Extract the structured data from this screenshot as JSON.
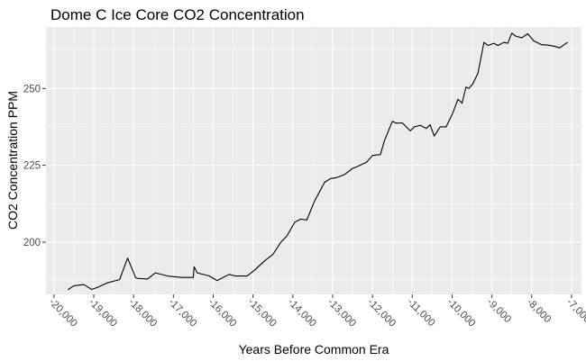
{
  "chart_data": {
    "type": "line",
    "title": "Dome C Ice Core CO2 Concentration",
    "xlabel": "Years Before Common Era",
    "ylabel": "CO2 Concentration PPM",
    "xlim": [
      -20200,
      -6750
    ],
    "ylim": [
      183,
      270
    ],
    "grid": true,
    "colors": {
      "panel": "#ebebeb",
      "grid_major": "#ffffff",
      "line": "#000000",
      "tick_text": "#4d4d4d"
    },
    "x_ticks": [
      {
        "value": -20000,
        "label": "-20,000"
      },
      {
        "value": -19000,
        "label": "-19,000"
      },
      {
        "value": -18000,
        "label": "-18,000"
      },
      {
        "value": -17000,
        "label": "-17,000"
      },
      {
        "value": -16000,
        "label": "-16,000"
      },
      {
        "value": -15000,
        "label": "-15,000"
      },
      {
        "value": -14000,
        "label": "-14,000"
      },
      {
        "value": -13000,
        "label": "-13,000"
      },
      {
        "value": -12000,
        "label": "-12,000"
      },
      {
        "value": -11000,
        "label": "-11,000"
      },
      {
        "value": -10000,
        "label": "-10,000"
      },
      {
        "value": -9000,
        "label": "-9,000"
      },
      {
        "value": -8000,
        "label": "-8,000"
      },
      {
        "value": -7000,
        "label": "-7,000"
      }
    ],
    "y_ticks": [
      {
        "value": 200,
        "label": "200"
      },
      {
        "value": 225,
        "label": "225"
      },
      {
        "value": 250,
        "label": "250"
      }
    ],
    "series": [
      {
        "x": [
          -19650,
          -19500,
          -19250,
          -19050,
          -18900,
          -18650,
          -18350,
          -18150,
          -17950,
          -17900,
          -17650,
          -17450,
          -17150,
          -16800,
          -16500,
          -16480,
          -16400,
          -16100,
          -15900,
          -15600,
          -15450,
          -15150,
          -14950,
          -14700,
          -14500,
          -14300,
          -14150,
          -13950,
          -13800,
          -13650,
          -13450,
          -13200,
          -13050,
          -12900,
          -12700,
          -12500,
          -12400,
          -12150,
          -12000,
          -11800,
          -11700,
          -11500,
          -11400,
          -11250,
          -11050,
          -10950,
          -10800,
          -10650,
          -10550,
          -10450,
          -10300,
          -10150,
          -10000,
          -9850,
          -9750,
          -9650,
          -9580,
          -9480,
          -9350,
          -9200,
          -9100,
          -8950,
          -8850,
          -8700,
          -8600,
          -8500,
          -8400,
          -8250,
          -8100,
          -7950,
          -7750,
          -7650,
          -7450,
          -7300,
          -7100
        ],
        "y": [
          184.5,
          185.8,
          186.2,
          184.6,
          185.3,
          186.8,
          187.8,
          194.8,
          188.5,
          188.2,
          188.0,
          190.0,
          189.0,
          188.5,
          188.5,
          192.0,
          190.0,
          189.0,
          187.5,
          189.5,
          189.0,
          189.0,
          191.0,
          194.0,
          196.0,
          200.0,
          202.0,
          206.5,
          207.5,
          207.2,
          213.5,
          219.5,
          220.7,
          221.0,
          222.0,
          224.0,
          224.5,
          226.0,
          228.2,
          228.5,
          233.0,
          239.3,
          238.7,
          238.8,
          236.2,
          237.5,
          238.0,
          237.0,
          238.2,
          234.5,
          237.5,
          237.5,
          241.5,
          246.5,
          245.2,
          250.5,
          250.0,
          251.5,
          255.0,
          265.0,
          264.0,
          264.7,
          264.0,
          265.0,
          264.7,
          268.0,
          267.0,
          266.5,
          267.8,
          265.5,
          264.2,
          264.2,
          263.8,
          263.2,
          265.0
        ]
      }
    ]
  }
}
